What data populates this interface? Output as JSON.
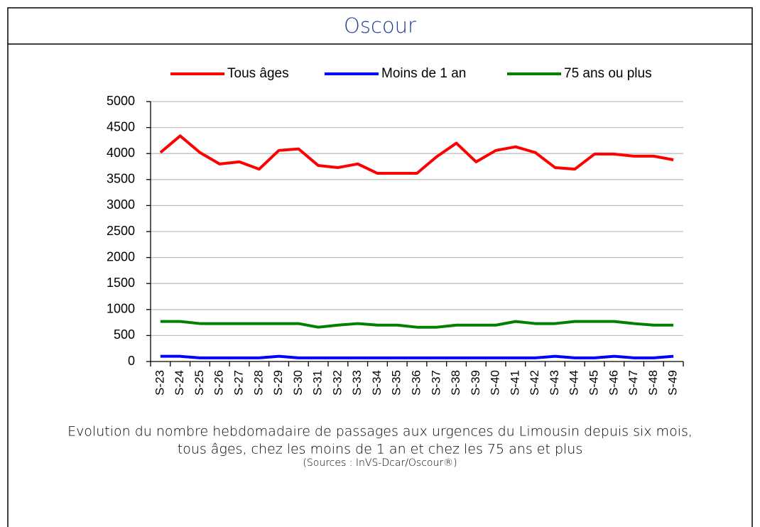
{
  "header": {
    "title": "Oscour"
  },
  "chart_data": {
    "type": "line",
    "categories": [
      "S-23",
      "S-24",
      "S-25",
      "S-26",
      "S-27",
      "S-28",
      "S-29",
      "S-30",
      "S-31",
      "S-32",
      "S-33",
      "S-34",
      "S-35",
      "S-36",
      "S-37",
      "S-38",
      "S-39",
      "S-40",
      "S-41",
      "S-42",
      "S-43",
      "S-44",
      "S-45",
      "S-46",
      "S-47",
      "S-48",
      "S-49"
    ],
    "series": [
      {
        "name": "Tous âges",
        "color": "#ff0000",
        "values": [
          4020,
          4340,
          4020,
          3800,
          3840,
          3700,
          4060,
          4090,
          3770,
          3730,
          3800,
          3620,
          3620,
          3620,
          3940,
          4200,
          3840,
          4060,
          4130,
          4020,
          3730,
          3700,
          3990,
          3990,
          3950,
          3950,
          3880
        ]
      },
      {
        "name": "Moins de 1 an",
        "color": "#0000ff",
        "values": [
          100,
          100,
          70,
          70,
          70,
          70,
          100,
          70,
          70,
          70,
          70,
          70,
          70,
          70,
          70,
          70,
          70,
          70,
          70,
          70,
          100,
          70,
          70,
          100,
          70,
          70,
          100
        ]
      },
      {
        "name": "75 ans ou plus",
        "color": "#008000",
        "values": [
          770,
          770,
          730,
          730,
          730,
          730,
          730,
          730,
          660,
          700,
          730,
          700,
          700,
          660,
          660,
          700,
          700,
          700,
          770,
          730,
          730,
          770,
          770,
          770,
          730,
          700,
          700
        ]
      }
    ],
    "ylim": [
      0,
      5000
    ],
    "yticks": [
      0,
      500,
      1000,
      1500,
      2000,
      2500,
      3000,
      3500,
      4000,
      4500,
      5000
    ],
    "grid": true,
    "legend": "top",
    "caption": [
      "Evolution du nombre hebdomadaire de passages aux urgences du Limousin depuis six mois,",
      "tous âges, chez les moins de 1 an et chez les 75 ans et plus",
      "(Sources : InVS-Dcar/Oscour®)"
    ]
  }
}
